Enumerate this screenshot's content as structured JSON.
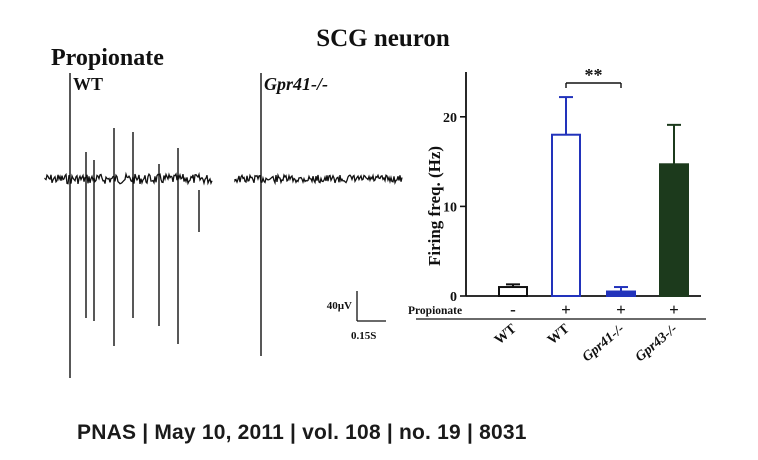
{
  "figure": {
    "title": "SCG neuron",
    "condition_label": "Propionate",
    "trace_labels": [
      "WT",
      "Gpr41-/-"
    ],
    "scale_bar": {
      "voltage_label": "40µV",
      "time_label": "0.15S"
    }
  },
  "chart_data": {
    "type": "bar",
    "ylabel": "Firing freq. (Hz)",
    "ylim": [
      0,
      25
    ],
    "yticks": [
      0,
      10,
      20
    ],
    "row_label": "Propionate",
    "categories": [
      "WT",
      "WT",
      "Gpr41-/-",
      "Gpr43-/-"
    ],
    "category_italic": [
      false,
      false,
      true,
      true
    ],
    "propionate": [
      "-",
      "+",
      "+",
      "+"
    ],
    "values": [
      1.0,
      18.0,
      0.5,
      14.7
    ],
    "errors": [
      0.3,
      4.2,
      0.5,
      4.4
    ],
    "fill_colors": [
      "#ffffff",
      "#ffffff",
      "#2233bb",
      "#1c3a1c"
    ],
    "edge_colors": [
      "#111111",
      "#2233bb",
      "#2233bb",
      "#1c3a1c"
    ],
    "significance": {
      "label": "**",
      "between": [
        1,
        2
      ]
    }
  },
  "caption": {
    "journal": "PNAS",
    "date": "May 10, 2011",
    "volume": "vol. 108",
    "number": "no. 19",
    "page": "8031"
  }
}
